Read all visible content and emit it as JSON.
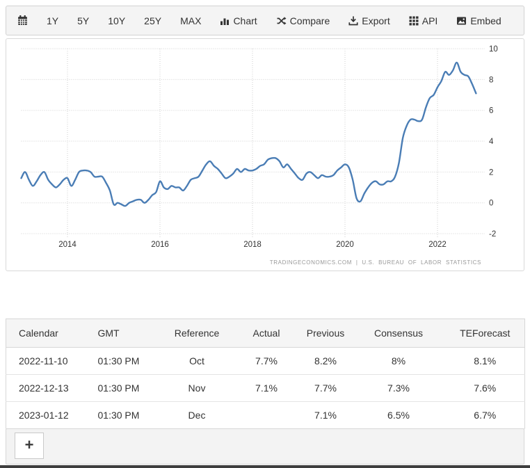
{
  "toolbar": {
    "calendar_icon": "calendar-icon",
    "range_buttons": [
      "1Y",
      "5Y",
      "10Y",
      "25Y",
      "MAX"
    ],
    "action_buttons": [
      {
        "icon": "bar-chart-icon",
        "label": "Chart"
      },
      {
        "icon": "shuffle-icon",
        "label": "Compare"
      },
      {
        "icon": "download-icon",
        "label": "Export"
      },
      {
        "icon": "grid-icon",
        "label": "API"
      },
      {
        "icon": "image-icon",
        "label": "Embed"
      }
    ]
  },
  "chart_data": {
    "type": "line",
    "frequency": "monthly",
    "start_year": 2013,
    "end_point": "Nov 2022",
    "values": [
      1.6,
      2.0,
      1.5,
      1.1,
      1.4,
      1.8,
      2.0,
      1.5,
      1.2,
      1.0,
      1.2,
      1.5,
      1.6,
      1.1,
      1.5,
      2.0,
      2.1,
      2.1,
      2.0,
      1.7,
      1.7,
      1.7,
      1.3,
      0.8,
      -0.1,
      0.0,
      -0.1,
      -0.2,
      0.0,
      0.1,
      0.2,
      0.2,
      0.0,
      0.2,
      0.5,
      0.7,
      1.4,
      1.0,
      0.9,
      1.1,
      1.0,
      1.0,
      0.8,
      1.1,
      1.5,
      1.6,
      1.7,
      2.1,
      2.5,
      2.7,
      2.4,
      2.2,
      1.9,
      1.6,
      1.7,
      1.9,
      2.2,
      2.0,
      2.2,
      2.1,
      2.1,
      2.2,
      2.4,
      2.5,
      2.8,
      2.9,
      2.9,
      2.7,
      2.3,
      2.5,
      2.2,
      1.9,
      1.6,
      1.5,
      1.9,
      2.0,
      1.8,
      1.6,
      1.8,
      1.7,
      1.7,
      1.8,
      2.1,
      2.3,
      2.5,
      2.3,
      1.5,
      0.3,
      0.1,
      0.6,
      1.0,
      1.3,
      1.4,
      1.2,
      1.2,
      1.4,
      1.4,
      1.7,
      2.6,
      4.2,
      5.0,
      5.4,
      5.4,
      5.3,
      5.4,
      6.2,
      6.8,
      7.0,
      7.5,
      7.9,
      8.5,
      8.3,
      8.6,
      9.1,
      8.5,
      8.3,
      8.2,
      7.7,
      7.1
    ],
    "x_tick_labels": [
      "2014",
      "2016",
      "2018",
      "2020",
      "2022"
    ],
    "y_tick_labels": [
      "10",
      "8",
      "6",
      "4",
      "2",
      "0",
      "-2"
    ],
    "ylim": [
      -2,
      10
    ],
    "grid": "dotted",
    "legend": "none",
    "line_color": "#4a7db5",
    "watermark": "TRADINGECONOMICS.COM | U.S. BUREAU OF LABOR STATISTICS"
  },
  "table": {
    "headers": [
      "Calendar",
      "GMT",
      "Reference",
      "Actual",
      "Previous",
      "Consensus",
      "TEForecast"
    ],
    "rows": [
      {
        "calendar": "2022-11-10",
        "gmt": "01:30 PM",
        "reference": "Oct",
        "actual": "7.7%",
        "previous": "8.2%",
        "consensus": "8%",
        "teforecast": "8.1%"
      },
      {
        "calendar": "2022-12-13",
        "gmt": "01:30 PM",
        "reference": "Nov",
        "actual": "7.1%",
        "previous": "7.7%",
        "consensus": "7.3%",
        "teforecast": "7.6%"
      },
      {
        "calendar": "2023-01-12",
        "gmt": "01:30 PM",
        "reference": "Dec",
        "actual": "",
        "previous": "7.1%",
        "consensus": "6.5%",
        "teforecast": "6.7%"
      }
    ]
  },
  "footer": {
    "add_button_label": "+"
  },
  "colors": {
    "series_line": "#4a7db5",
    "panel_bg": "#f4f4f4",
    "dark_bar": "#3e3e3e",
    "grid_line": "#cfcfcf"
  }
}
